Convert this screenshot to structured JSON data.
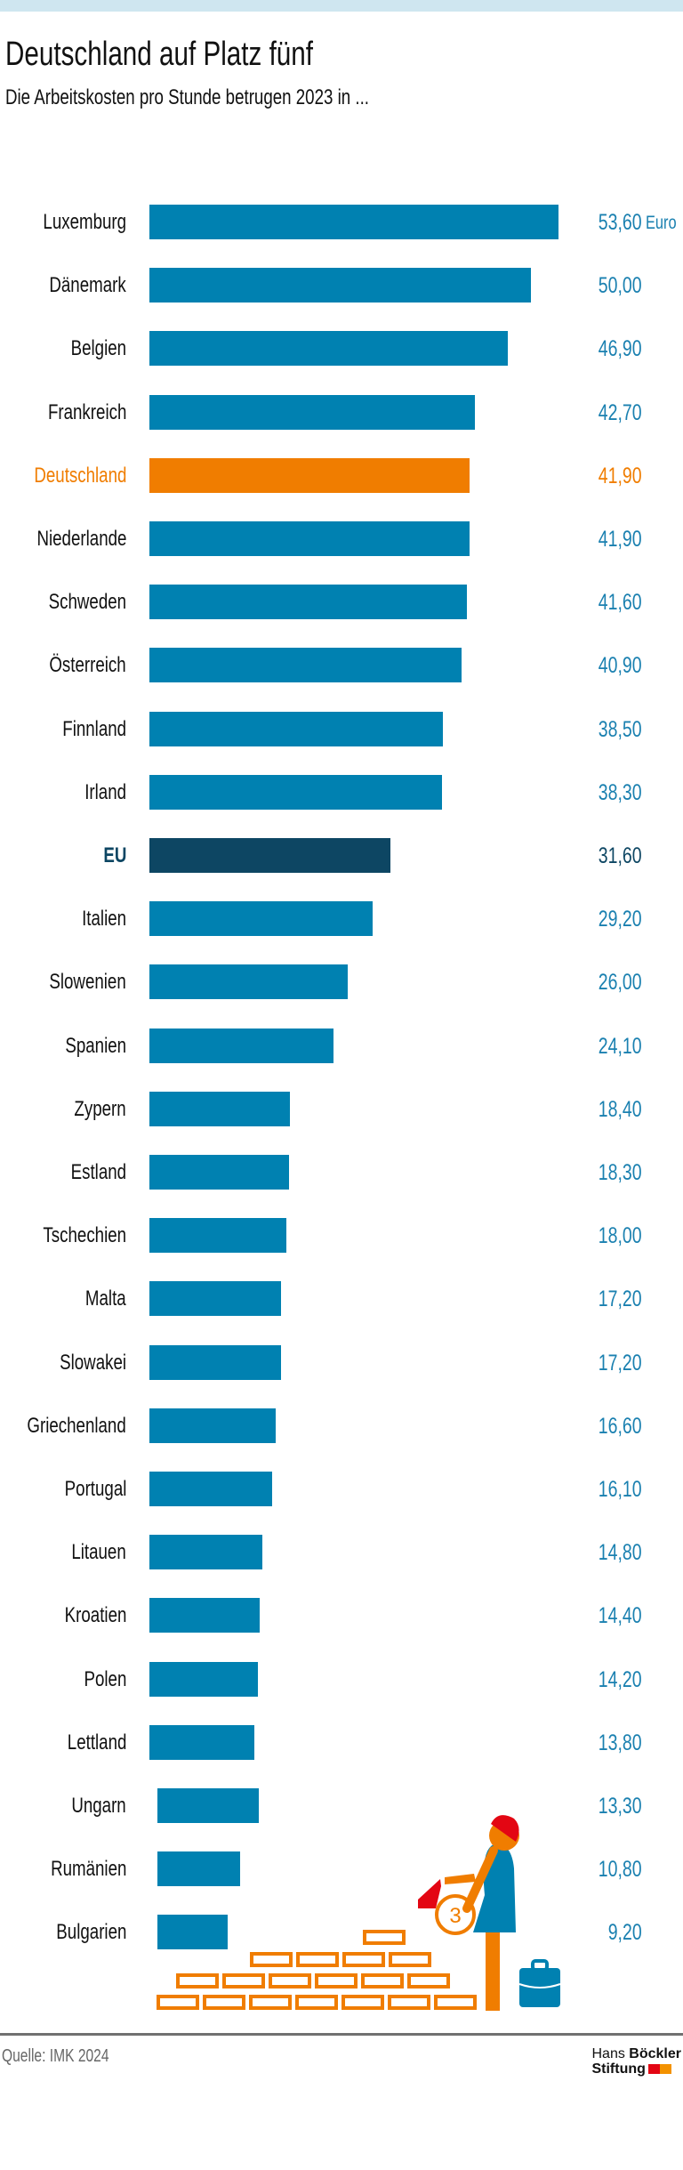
{
  "header": {
    "title": "Deutschland auf Platz fünf",
    "subtitle": "Die Arbeitskosten pro Stunde betrugen 2023 in ..."
  },
  "footer": {
    "source": "Quelle: IMK 2024",
    "logo_line1_light": "Hans",
    "logo_line1_bold": "Böckler",
    "logo_line2": "Stiftung"
  },
  "colors": {
    "bar": "#0081b1",
    "highlight": "#f07d00",
    "eu": "#0d4663",
    "value_text": "#1a80b0",
    "top_band": "#cfe6f0",
    "logo_red": "#e30613",
    "logo_orange": "#f39200"
  },
  "chart_data": {
    "type": "bar",
    "orientation": "horizontal",
    "title": "Deutschland auf Platz fünf",
    "subtitle": "Die Arbeitskosten pro Stunde betrugen 2023 in ...",
    "unit": "Euro",
    "grid": false,
    "categories": [
      "Luxemburg",
      "Dänemark",
      "Belgien",
      "Frankreich",
      "Deutschland",
      "Niederlande",
      "Schweden",
      "Österreich",
      "Finnland",
      "Irland",
      "EU",
      "Italien",
      "Slowenien",
      "Spanien",
      "Zypern",
      "Estland",
      "Tschechien",
      "Malta",
      "Slowakei",
      "Griechenland",
      "Portugal",
      "Litauen",
      "Kroatien",
      "Polen",
      "Lettland",
      "Ungarn",
      "Rumänien",
      "Bulgarien"
    ],
    "values": [
      53.6,
      50.0,
      46.9,
      42.7,
      41.9,
      41.9,
      41.6,
      40.9,
      38.5,
      38.3,
      31.6,
      29.2,
      26.0,
      24.1,
      18.4,
      18.3,
      18.0,
      17.2,
      17.2,
      16.6,
      16.1,
      14.8,
      14.4,
      14.2,
      13.8,
      13.3,
      10.8,
      9.2
    ],
    "labels": [
      "53,60",
      "50,00",
      "46,90",
      "42,70",
      "41,90",
      "41,90",
      "41,60",
      "40,90",
      "38,50",
      "38,30",
      "31,60",
      "29,20",
      "26,00",
      "24,10",
      "18,40",
      "18,30",
      "18,00",
      "17,20",
      "17,20",
      "16,60",
      "16,10",
      "14,80",
      "14,40",
      "14,20",
      "13,80",
      "13,30",
      "10,80",
      "9,20"
    ],
    "highlight": {
      "Deutschland": "highlight",
      "EU": "eu"
    }
  }
}
